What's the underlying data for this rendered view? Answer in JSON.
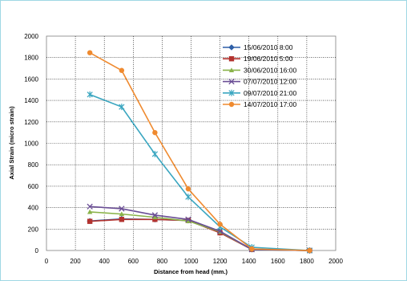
{
  "chart_data": {
    "type": "line",
    "xlabel": "Distance from head (mm.)",
    "ylabel": "Axial  Strain (micro strain)",
    "xlim": [
      0,
      2000
    ],
    "ylim": [
      0,
      2000
    ],
    "x_ticks": [
      "0",
      "200",
      "400",
      "600",
      "800",
      "1000",
      "1200",
      "1400",
      "1600",
      "1800",
      "2000"
    ],
    "y_ticks": [
      "0",
      "200",
      "400",
      "600",
      "800",
      "1000",
      "1200",
      "1400",
      "1600",
      "1800",
      "2000"
    ],
    "grid": "dotted",
    "legend_position": "top-right",
    "x": [
      300,
      520,
      750,
      980,
      1200,
      1420,
      1820
    ],
    "series": [
      {
        "name": "15/06/2010 8:00",
        "color": "#2e5fa7",
        "marker": "diamond",
        "values": [
          275,
          295,
          290,
          280,
          170,
          10,
          0
        ]
      },
      {
        "name": "19/06/2010 5:00",
        "color": "#b3332f",
        "marker": "square",
        "values": [
          272,
          290,
          290,
          280,
          165,
          10,
          0
        ]
      },
      {
        "name": "30/06/2010 16:00",
        "color": "#8ab34a",
        "marker": "triangle",
        "values": [
          360,
          340,
          310,
          275,
          175,
          10,
          0
        ]
      },
      {
        "name": "07/07/2010 12:00",
        "color": "#6a4e95",
        "marker": "x",
        "values": [
          410,
          390,
          330,
          290,
          180,
          10,
          0
        ]
      },
      {
        "name": "09/07/2010 21:00",
        "color": "#3aa6c0",
        "marker": "star",
        "values": [
          1455,
          1340,
          900,
          500,
          220,
          30,
          0
        ]
      },
      {
        "name": "14/07/2010 17:00",
        "color": "#ef8a2f",
        "marker": "circle",
        "values": [
          1845,
          1680,
          1100,
          575,
          245,
          15,
          0
        ]
      }
    ]
  }
}
